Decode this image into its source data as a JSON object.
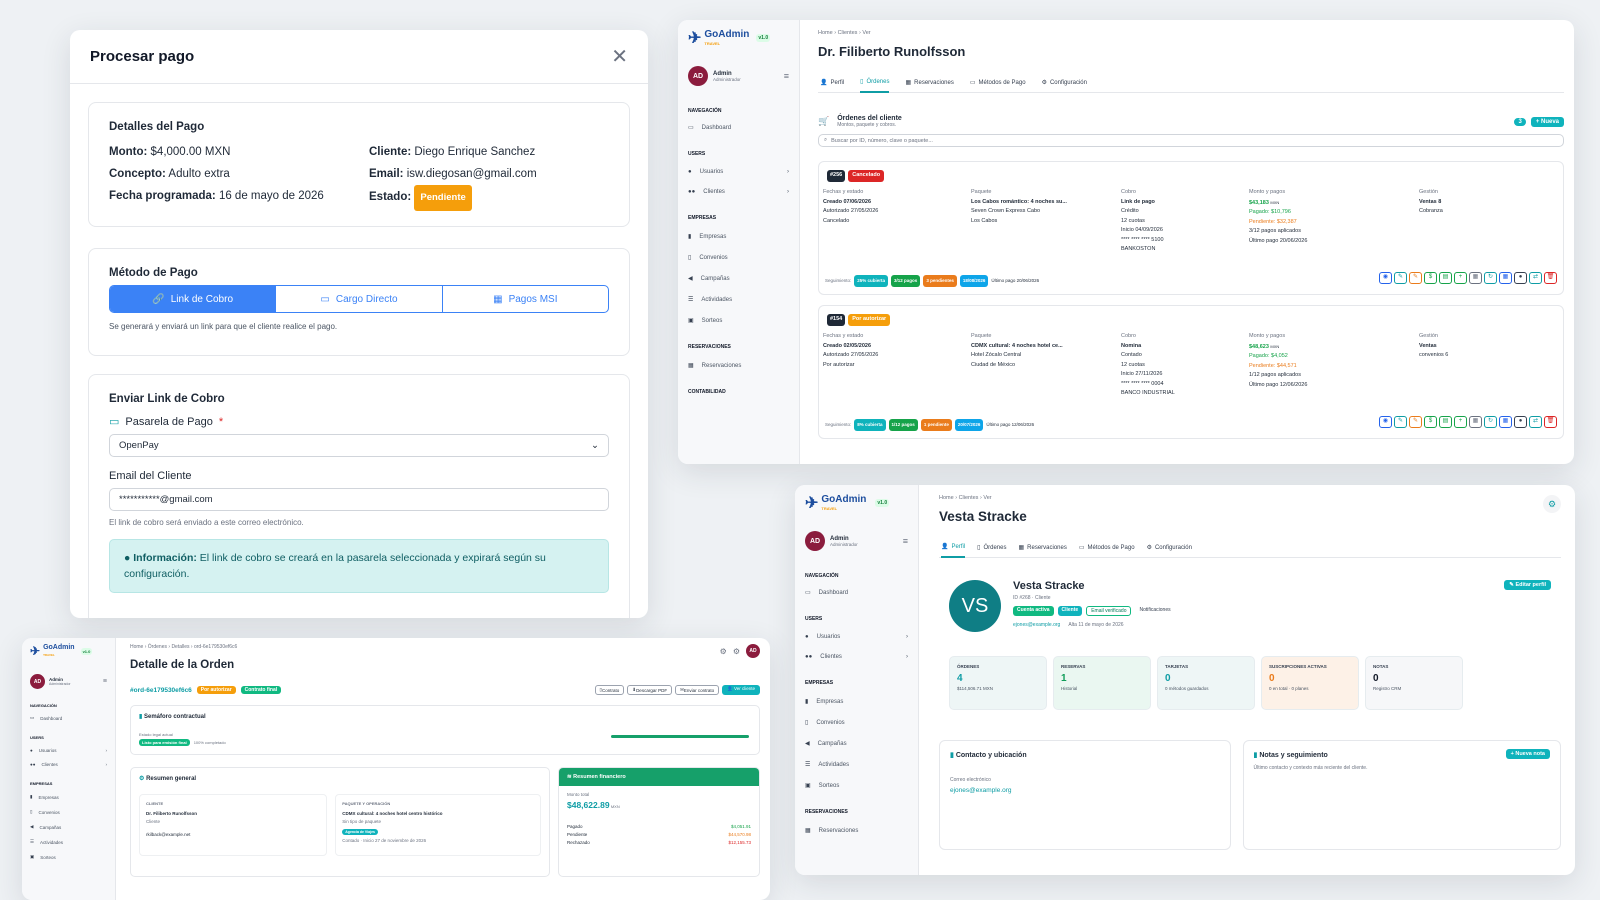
{
  "common": {
    "brand": "GoAdmin",
    "brand_sub": "TRAVEL",
    "version": "v1.0",
    "avatar_initials": "AD",
    "user_name": "Admin",
    "user_role": "Administrador",
    "nav": {
      "sec_nav": "NAVEGACIÓN",
      "dashboard": "Dashboard",
      "sec_users": "USERS",
      "usuarios": "Usuarios",
      "clientes": "Clientes",
      "sec_empresas": "EMPRESAS",
      "empresas": "Empresas",
      "convenios": "Convenios",
      "campanas": "Campañas",
      "actividades": "Actividades",
      "sorteos": "Sorteos",
      "sec_reservaciones": "RESERVACIONES",
      "reservaciones": "Reservaciones",
      "sec_contabilidad": "CONTABILIDAD"
    },
    "tabs": {
      "perfil": "Perfil",
      "ordenes": "Órdenes",
      "reservaciones": "Reservaciones",
      "metodos": "Métodos de Pago",
      "config": "Configuración"
    },
    "crumb": {
      "home": "Home",
      "clientes": "Clientes",
      "ver": "Ver",
      "ordenes": "Órdenes",
      "detalles": "Detalles",
      "order_id": "ord-6e179530ef6c6"
    }
  },
  "pago": {
    "title": "Procesar pago",
    "detalles_title": "Detalles del Pago",
    "monto_label": "Monto:",
    "monto": "$4,000.00 MXN",
    "concepto_label": "Concepto:",
    "concepto": "Adulto extra",
    "fecha_label": "Fecha programada:",
    "fecha": "16 de mayo de 2026",
    "cliente_label": "Cliente:",
    "cliente": "Diego Enrique Sanchez",
    "email_label": "Email:",
    "email": "isw.diegosan@gmail.com",
    "estado_label": "Estado:",
    "estado": "Pendiente",
    "metodo_title": "Método de Pago",
    "opt_link": "Link de Cobro",
    "opt_cargo": "Cargo Directo",
    "opt_msi": "Pagos MSI",
    "metodo_help": "Se generará y enviará un link para que el cliente realice el pago.",
    "enviar_title": "Enviar Link de Cobro",
    "pasarela_label": "Pasarela de Pago",
    "required": "*",
    "pasarela_value": "OpenPay",
    "email_cliente_label": "Email del Cliente",
    "email_cliente_value": "***********@gmail.com",
    "email_help": "El link de cobro será enviado a este correo electrónico.",
    "info_label": "Información:",
    "info_text": "El link de cobro se creará en la pasarela seleccionada y expirará según su configuración."
  },
  "ordenes": {
    "client_title": "Dr. Filiberto Runolfsson",
    "section_title": "Órdenes del cliente",
    "section_sub": "Montos, paquete y cobros.",
    "count": "3",
    "new_label": "+ Nueva",
    "search_placeholder": "Buscar por ID, número, clave o paquete...",
    "seg_label": "Seguimiento:",
    "orders": [
      {
        "id": "#256",
        "status": "Cancelado",
        "status_color": "#dc2626",
        "fechas_label": "Fechas y estado",
        "creado": "Creado 07/06/2026",
        "autorizado": "Autorizado 27/05/2026",
        "estado": "Cancelado",
        "paquete_label": "Paquete",
        "paquete": "Los Cabos romántico: 4 noches su...",
        "hotel": "Seven Crown Express Cabo",
        "lugar": "Los Cabos",
        "cobro_label": "Cobro",
        "cobro": "Link de pago",
        "tipo": "Crédito",
        "cuotas": "12 cuotas",
        "inicio": "Inicio 04/09/2026",
        "tarjeta": "**** **** **** 5100",
        "banco": "BANKOSTON",
        "monto_label": "Monto y pagos",
        "monto": "$43,183",
        "monto_cur": "MXN",
        "pagado": "Pagado: $10,796",
        "pendiente": "Pendiente: $32,387",
        "pagos": "3/12 pagos aplicados",
        "ultimo": "Último pago 20/06/2026",
        "gestion_label": "Gestión",
        "gestion": "Ventas 8",
        "gestion2": "Cobranza",
        "seg_cubierta": "25% cubierta",
        "seg_pagos": "3/12 pagos",
        "seg_pend": "3 pendientes",
        "seg_fecha": "18/08/2026",
        "seg_ultimo": "Último pago 20/06/2026"
      },
      {
        "id": "#154",
        "status": "Por autorizar",
        "status_color": "#f59e0b",
        "fechas_label": "Fechas y estado",
        "creado": "Creado 02/05/2026",
        "autorizado": "Autorizado 27/05/2026",
        "estado": "Por autorizar",
        "paquete_label": "Paquete",
        "paquete": "CDMX cultural: 4 noches hotel ce...",
        "hotel": "Hotel Zócalo Central",
        "lugar": "Ciudad de México",
        "cobro_label": "Cobro",
        "cobro": "Nomina",
        "tipo": "Contado",
        "cuotas": "12 cuotas",
        "inicio": "Inicio 27/11/2026",
        "tarjeta": "**** **** **** 0004",
        "banco": "BANCO INDUSTRIAL",
        "monto_label": "Monto y pagos",
        "monto": "$48,623",
        "monto_cur": "MXN",
        "pagado": "Pagado: $4,052",
        "pendiente": "Pendiente: $44,571",
        "pagos": "1/12 pagos aplicados",
        "ultimo": "Último pago 12/06/2026",
        "gestion_label": "Gestión",
        "gestion": "Ventas",
        "gestion2": "convenios 6",
        "seg_cubierta": "8% cubierta",
        "seg_pagos": "1/12 pagos",
        "seg_pend": "1 pendiente",
        "seg_fecha": "20/07/2026",
        "seg_ultimo": "Último pago 12/06/2026"
      }
    ]
  },
  "perfil": {
    "client_title": "Vesta Stracke",
    "initials": "VS",
    "name": "Vesta Stracke",
    "id_line": "ID #268 · Cliente",
    "badge_activa": "Cuenta activa",
    "badge_cliente": "Cliente",
    "badge_email": "Email verificado",
    "badge_notif": "Notificaciones",
    "email": "ejones@example.org",
    "alta": "Alta 11 de mayo de 2026",
    "edit_label": "Editar perfil",
    "stats": [
      {
        "label": "ÓRDENES",
        "value": "4",
        "sub": "$114,506.71 MXN",
        "bg": "#eef6f6",
        "color": "#0f9da5"
      },
      {
        "label": "RESERVAS",
        "value": "1",
        "sub": "Historial",
        "bg": "#eaf7f1",
        "color": "#0f9d58"
      },
      {
        "label": "TARJETAS",
        "value": "0",
        "sub": "0 métodos guardados",
        "bg": "#eef6f6",
        "color": "#0f9da5"
      },
      {
        "label": "SUSCRIPCIONES ACTIVAS",
        "value": "0",
        "sub": "0 en total · 0 planes",
        "bg": "#fdf1e7",
        "color": "#ea7c1c"
      },
      {
        "label": "NOTAS",
        "value": "0",
        "sub": "Registro CRM",
        "bg": "#f6f7f9",
        "color": "#111827"
      }
    ],
    "contacto_title": "Contacto y ubicación",
    "correo_label": "Correo electrónico",
    "correo": "ejones@example.org",
    "notas_title": "Notas y seguimiento",
    "notas_sub": "Último contacto y contexto más reciente del cliente.",
    "nueva_nota": "Nueva nota"
  },
  "detalle": {
    "title": "Detalle de la Orden",
    "order_tag": "#ord-6e179530ef6c6",
    "badge_auth": "Por autorizar",
    "badge_contrato": "Contrato final",
    "btn_contrato": "Contrato",
    "btn_pdf": "Descargar PDF",
    "btn_enviar": "Enviar contrato",
    "btn_ver": "Ver cliente",
    "semaforo_title": "Semáforo contractual",
    "estado_legal": "Estado legal actual",
    "listo": "Listo para emisión final",
    "completado": "100% completado",
    "progress": 1.0,
    "resumen_title": "Resumen general",
    "cliente_label": "CLIENTE",
    "cliente": "Dr. Filiberto Runolfsson",
    "cliente_sub": "Cliente",
    "cliente_email": "rkilback@example.net",
    "paquete_label": "PAQUETE Y OPERACIÓN",
    "paquete": "CDMX cultural: 4 noches hotel centro histórico",
    "paquete_sub": "Sin tipo de paquete",
    "paquete_badge": "Agencia de Viajes",
    "contado": "Contado · Inicio 27 de noviembre de 2026",
    "fin_title": "Resumen financiero",
    "monto_total_label": "Monto total",
    "monto_total": "$48,622.89",
    "monto_cur": "MXN",
    "pagado_label": "Pagado",
    "pagado": "$4,051.91",
    "pendiente_label": "Pendiente",
    "pendiente": "$44,570.98",
    "rechazado_label": "Rechazado",
    "rechazado": "$12,155.73"
  }
}
